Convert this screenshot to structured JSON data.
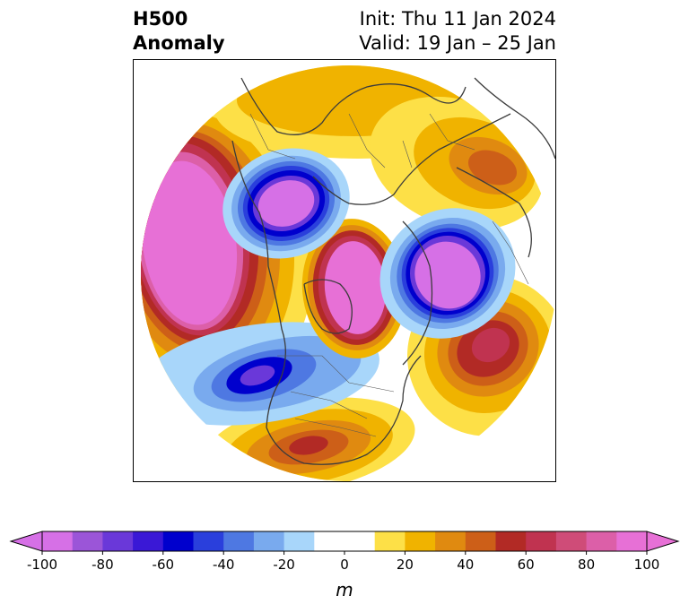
{
  "title": {
    "left_line1": "H500",
    "left_line2": "Anomaly",
    "right_line1": "Init: Thu 11 Jan 2024",
    "right_line2": "Valid: 19 Jan – 25 Jan"
  },
  "colorbar": {
    "levels": [
      -100,
      -90,
      -80,
      -70,
      -60,
      -50,
      -40,
      -30,
      -20,
      -10,
      10,
      20,
      30,
      40,
      50,
      60,
      70,
      80,
      90,
      100
    ],
    "colors": [
      "#d670e6",
      "#9b55d8",
      "#6a38d9",
      "#3a18d6",
      "#0000cd",
      "#2a3fdc",
      "#4e78e2",
      "#79aaee",
      "#a8d6fa",
      "#ffffff",
      "#fde047",
      "#f0b300",
      "#e08a10",
      "#cd5f18",
      "#b22a25",
      "#c03350",
      "#cf4c78",
      "#dc5fa8",
      "#e770d6"
    ],
    "tick_labels": [
      "-100",
      "-80",
      "-60",
      "-40",
      "-20",
      "0",
      "20",
      "40",
      "60",
      "80",
      "100"
    ],
    "units": "m",
    "extend_min_color": "#d670e6",
    "extend_max_color": "#e770d6"
  }
}
